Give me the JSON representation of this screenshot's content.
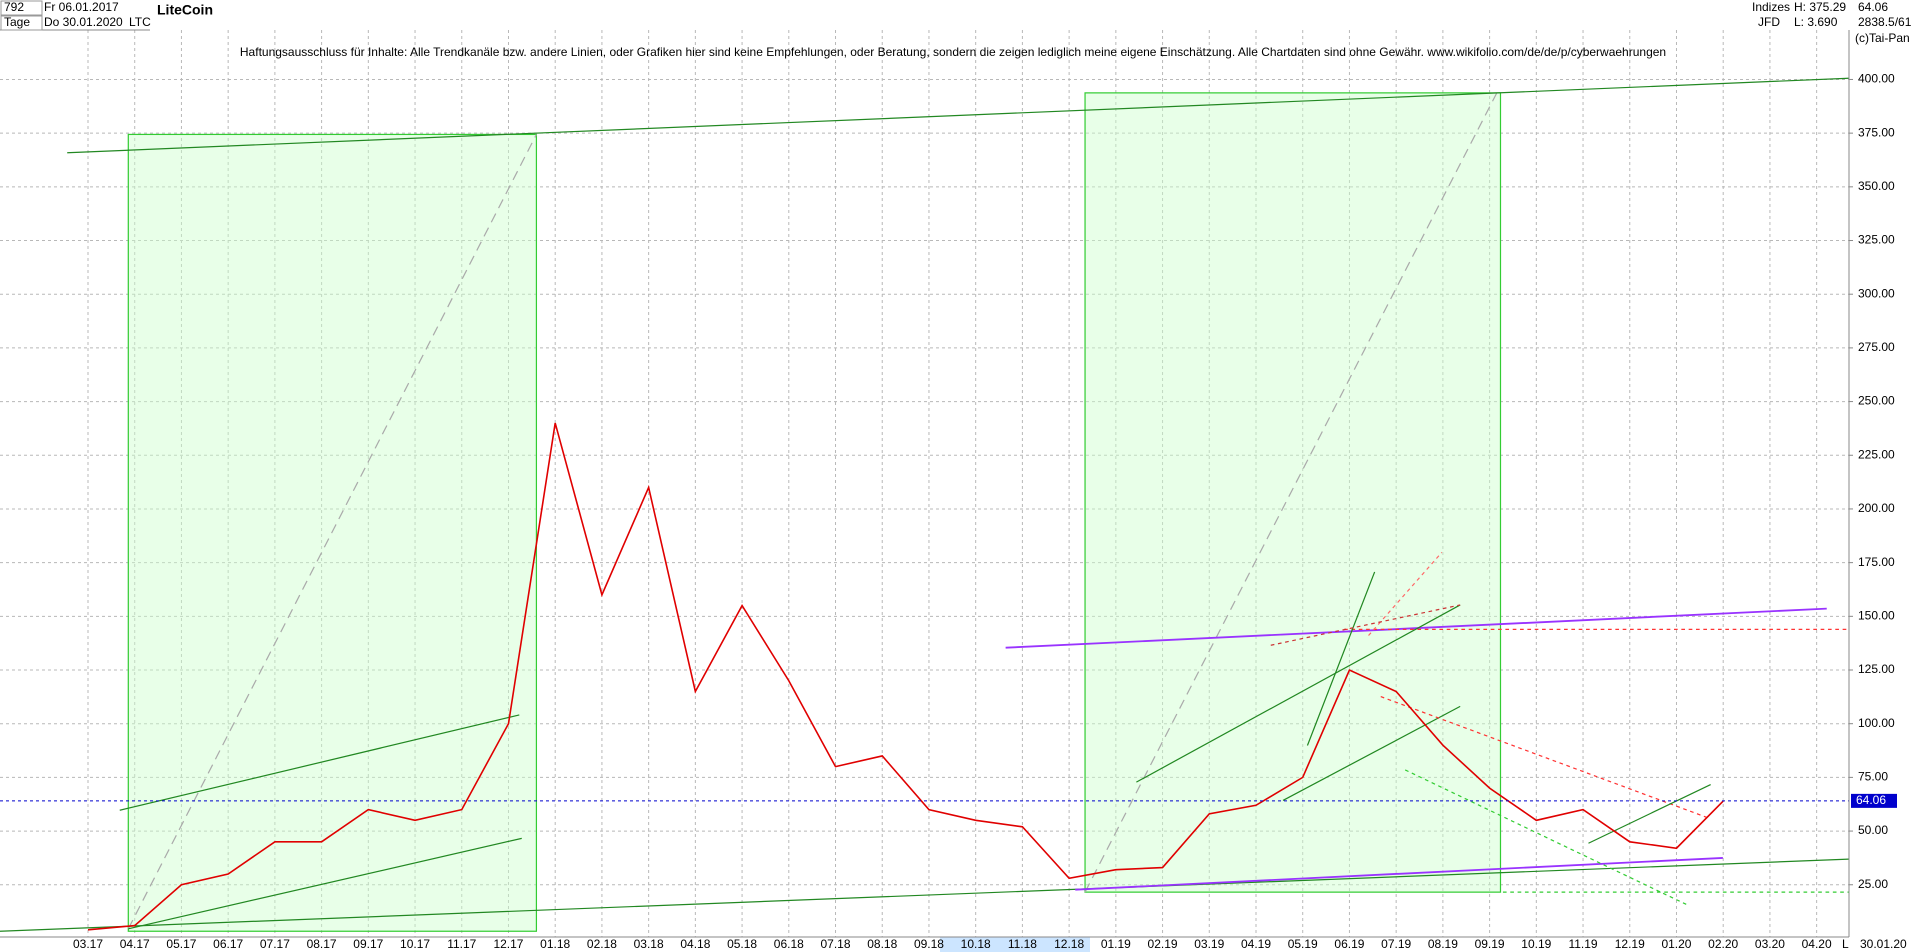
{
  "header": {
    "count": "792",
    "start": "Fr 06.01.2017",
    "period": "Tage",
    "end": "Do 30.01.2020",
    "name": "LiteCoin",
    "symbol": "LTC",
    "group": "Indizes",
    "source": "JFD",
    "high": "H: 375.29",
    "low": "L: 3.690",
    "info": "2838.5/61",
    "copyright": "(c)Tai-Pan",
    "disclaimer": "Haftungsausschluss für Inhalte: Alle Trendkanäle bzw. andere Linien, oder Grafiken hier sind keine Empfehlungen, oder Beratung, sondern die zeigen lediglich meine eigene Einschätzung. Alle Chartdaten sind ohne Gewähr.  www.wikifolio.com/de/de/p/cyberwaehrungen",
    "date_label": "30.01.20",
    "scale_mode": "L"
  },
  "chart_data": {
    "type": "line",
    "categories": [
      "03.17",
      "04.17",
      "05.17",
      "06.17",
      "07.17",
      "08.17",
      "09.17",
      "10.17",
      "11.17",
      "12.17",
      "01.18",
      "02.18",
      "03.18",
      "04.18",
      "05.18",
      "06.18",
      "07.18",
      "08.18",
      "09.18",
      "10.18",
      "11.18",
      "12.18",
      "01.19",
      "02.19",
      "03.19",
      "04.19",
      "05.19",
      "06.19",
      "07.19",
      "08.19",
      "09.19",
      "10.19",
      "11.19",
      "12.19",
      "01.20",
      "02.20",
      "03.20",
      "04.20"
    ],
    "series": [
      {
        "name": "LiteCoin",
        "color": "#e00000",
        "values": [
          4,
          6,
          25,
          30,
          45,
          45,
          60,
          55,
          60,
          100,
          240,
          160,
          210,
          115,
          155,
          120,
          80,
          85,
          60,
          55,
          52,
          28,
          32,
          33,
          58,
          62,
          75,
          125,
          115,
          90,
          70,
          55,
          60,
          45,
          42,
          64,
          null,
          null
        ]
      }
    ],
    "last_price": 64.06,
    "ylim": [
      3,
      437
    ],
    "yticks": [
      {
        "value": 25,
        "label": "25.00"
      },
      {
        "value": 50,
        "label": "50.00"
      },
      {
        "value": 75,
        "label": "75.00"
      },
      {
        "value": 100,
        "label": "100.00"
      },
      {
        "value": 125,
        "label": "125.00"
      },
      {
        "value": 150,
        "label": "150.00"
      },
      {
        "value": 175,
        "label": "175.00"
      },
      {
        "value": 200,
        "label": "200.00"
      },
      {
        "value": 225,
        "label": "225.00"
      },
      {
        "value": 250,
        "label": "250.00"
      },
      {
        "value": 275,
        "label": "275.00"
      },
      {
        "value": 300,
        "label": "300.00"
      },
      {
        "value": 325,
        "label": "325.00"
      },
      {
        "value": 350,
        "label": "350.00"
      },
      {
        "value": 375,
        "label": "375.00"
      },
      {
        "value": 400,
        "label": "400.00"
      }
    ],
    "grid": true
  }
}
